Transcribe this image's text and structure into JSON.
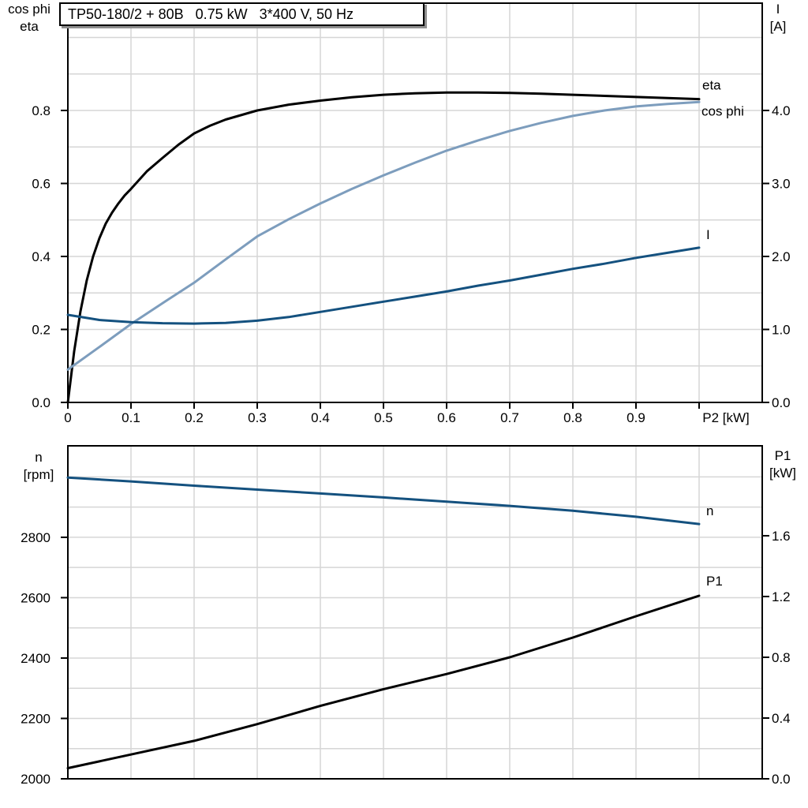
{
  "figure": {
    "title": "TP50-180/2 + 80B   0.75 kW   3*400 V, 50 Hz",
    "corner_labels": {
      "top_left": [
        "cos phi",
        "eta"
      ],
      "top_right": [
        "I",
        "[A]"
      ],
      "bottom_left": [
        "n",
        "[rpm]"
      ],
      "bottom_right": [
        "P1",
        "[kW]"
      ]
    },
    "colors": {
      "black_curve": "#000000",
      "light_blue_curve": "#7d9dbd",
      "dark_blue_curve": "#14517f",
      "grid": "#d6d6d6",
      "axis": "#000000",
      "title_box_shadow": "#8f8f8f"
    }
  },
  "chart_data": [
    {
      "type": "line",
      "position": "top",
      "x_axis": {
        "label": "P2 [kW]",
        "min": 0,
        "max": 1.1,
        "tick_values": [
          0,
          0.1,
          0.2,
          0.3,
          0.4,
          0.5,
          0.6,
          0.7,
          0.8,
          0.9,
          1.0
        ],
        "tick_labels": [
          "0",
          "0.1",
          "0.2",
          "0.3",
          "0.4",
          "0.5",
          "0.6",
          "0.7",
          "0.8",
          "0.9",
          ""
        ],
        "grid_values": [
          0.1,
          0.2,
          0.3,
          0.4,
          0.5,
          0.6,
          0.7,
          0.8,
          0.9,
          1.0
        ]
      },
      "y_left": {
        "label": "cos phi / eta",
        "min": 0,
        "max": 1.094,
        "tick_values": [
          0,
          0.2,
          0.4,
          0.6,
          0.8
        ],
        "tick_labels": [
          "0.0",
          "0.2",
          "0.4",
          "0.6",
          "0.8"
        ],
        "grid_values": [
          0.1,
          0.2,
          0.3,
          0.4,
          0.5,
          0.6,
          0.7,
          0.8,
          0.9,
          1.0
        ]
      },
      "y_right": {
        "label": "I [A]",
        "min": 0,
        "max": 5.47,
        "tick_values": [
          0,
          1,
          2,
          3,
          4
        ],
        "tick_labels": [
          "0.0",
          "1.0",
          "2.0",
          "3.0",
          "4.0"
        ],
        "grid_values": []
      },
      "series": [
        {
          "name": "eta",
          "axis": "left",
          "color": "#000000",
          "x": [
            0,
            0.005,
            0.01,
            0.02,
            0.03,
            0.04,
            0.05,
            0.06,
            0.07,
            0.08,
            0.09,
            0.1,
            0.125,
            0.15,
            0.175,
            0.2,
            0.225,
            0.25,
            0.3,
            0.35,
            0.4,
            0.45,
            0.5,
            0.55,
            0.6,
            0.65,
            0.7,
            0.75,
            0.8,
            0.85,
            0.9,
            0.95,
            1.0
          ],
          "y": [
            0,
            0.07,
            0.14,
            0.25,
            0.335,
            0.4,
            0.45,
            0.49,
            0.52,
            0.545,
            0.567,
            0.585,
            0.633,
            0.67,
            0.706,
            0.737,
            0.758,
            0.775,
            0.8,
            0.816,
            0.827,
            0.836,
            0.843,
            0.847,
            0.849,
            0.849,
            0.848,
            0.846,
            0.843,
            0.84,
            0.837,
            0.834,
            0.831
          ]
        },
        {
          "name": "cos phi",
          "axis": "left",
          "color": "#7d9dbd",
          "x": [
            0,
            0.05,
            0.1,
            0.15,
            0.2,
            0.25,
            0.3,
            0.35,
            0.4,
            0.45,
            0.5,
            0.55,
            0.6,
            0.65,
            0.7,
            0.75,
            0.8,
            0.85,
            0.9,
            0.95,
            1.0
          ],
          "y": [
            0.09,
            0.152,
            0.215,
            0.272,
            0.328,
            0.392,
            0.455,
            0.502,
            0.545,
            0.585,
            0.622,
            0.657,
            0.69,
            0.718,
            0.744,
            0.766,
            0.785,
            0.8,
            0.811,
            0.818,
            0.823
          ]
        },
        {
          "name": "I",
          "axis": "right",
          "color": "#14517f",
          "x": [
            0,
            0.05,
            0.1,
            0.15,
            0.2,
            0.25,
            0.3,
            0.35,
            0.4,
            0.45,
            0.5,
            0.55,
            0.6,
            0.65,
            0.7,
            0.75,
            0.8,
            0.85,
            0.9,
            0.95,
            1.0
          ],
          "y": [
            1.2,
            1.13,
            1.1,
            1.085,
            1.08,
            1.09,
            1.12,
            1.17,
            1.24,
            1.31,
            1.38,
            1.45,
            1.52,
            1.6,
            1.67,
            1.75,
            1.83,
            1.9,
            1.98,
            2.05,
            2.12
          ]
        }
      ]
    },
    {
      "type": "line",
      "position": "bottom",
      "x_axis": {
        "label": "",
        "min": 0,
        "max": 1.1,
        "tick_values": [],
        "tick_labels": [],
        "grid_values": [
          0.1,
          0.2,
          0.3,
          0.4,
          0.5,
          0.6,
          0.7,
          0.8,
          0.9,
          1.0
        ]
      },
      "y_left": {
        "label": "n [rpm]",
        "min": 2000,
        "max": 3103,
        "tick_values": [
          2000,
          2200,
          2400,
          2600,
          2800
        ],
        "tick_labels": [
          "2000",
          "2200",
          "2400",
          "2600",
          "2800"
        ],
        "grid_values": [
          2100,
          2200,
          2300,
          2400,
          2500,
          2600,
          2700,
          2800,
          2900,
          3000
        ]
      },
      "y_right": {
        "label": "P1 [kW]",
        "min": 0,
        "max": 2.192,
        "tick_values": [
          0,
          0.4,
          0.8,
          1.2,
          1.6
        ],
        "tick_labels": [
          "0.0",
          "0.4",
          "0.8",
          "1.2",
          "1.6"
        ],
        "grid_values": []
      },
      "series": [
        {
          "name": "n",
          "axis": "left",
          "color": "#14517f",
          "x": [
            0,
            0.1,
            0.2,
            0.3,
            0.4,
            0.5,
            0.6,
            0.7,
            0.8,
            0.9,
            1.0
          ],
          "y": [
            2998,
            2985,
            2971,
            2958,
            2945,
            2932,
            2918,
            2904,
            2888,
            2868,
            2844
          ]
        },
        {
          "name": "P1",
          "axis": "right",
          "color": "#000000",
          "x": [
            0,
            0.1,
            0.2,
            0.3,
            0.4,
            0.5,
            0.6,
            0.7,
            0.8,
            0.9,
            1.0
          ],
          "y": [
            0.07,
            0.16,
            0.25,
            0.36,
            0.48,
            0.59,
            0.69,
            0.8,
            0.93,
            1.07,
            1.205
          ]
        }
      ]
    }
  ]
}
